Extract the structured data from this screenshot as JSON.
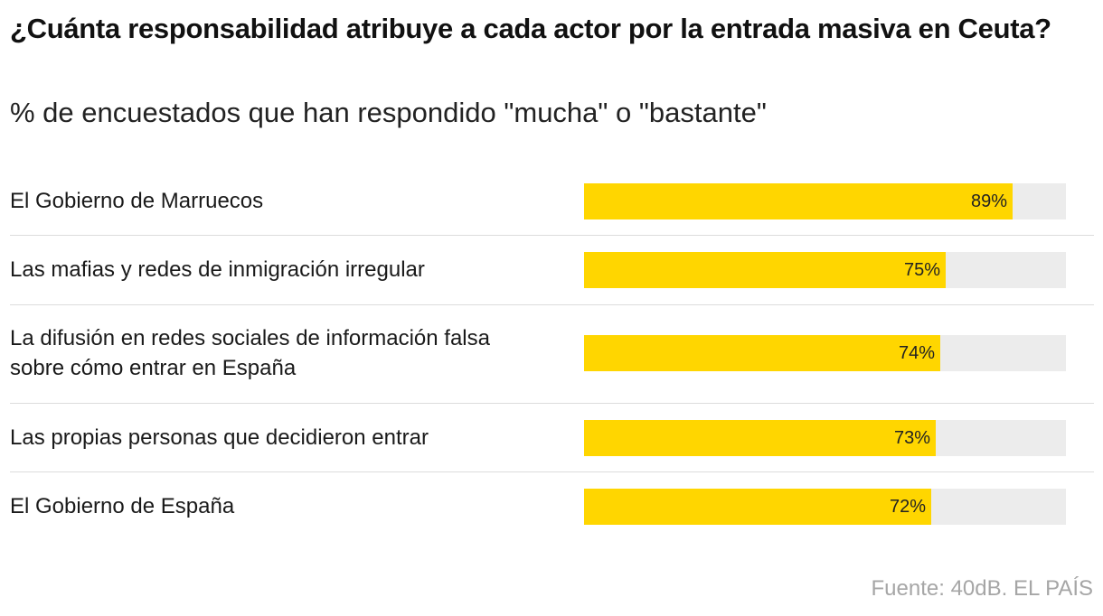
{
  "title": "¿Cuánta responsabilidad atribuye a cada actor por la entrada masiva en Ceuta?",
  "subtitle": "% de encuestados que han respondido \"mucha\" o \"bastante\"",
  "source": "Fuente: 40dB. EL PAÍS",
  "colors": {
    "bar": "#FFD600",
    "track": "#ECECEC",
    "divider": "#DCDCDC"
  },
  "chart_data": {
    "type": "bar",
    "orientation": "horizontal",
    "categories": [
      "El Gobierno de Marruecos",
      "Las mafias y redes de inmigración irregular",
      "La difusión en redes sociales de información falsa sobre cómo entrar en España",
      "Las propias personas que decidieron entrar",
      "El Gobierno de España"
    ],
    "values": [
      89,
      75,
      74,
      73,
      72
    ],
    "value_labels": [
      "89%",
      "75%",
      "74%",
      "73%",
      "72%"
    ],
    "xlim": [
      0,
      100
    ],
    "grid": false,
    "legend": "none"
  }
}
